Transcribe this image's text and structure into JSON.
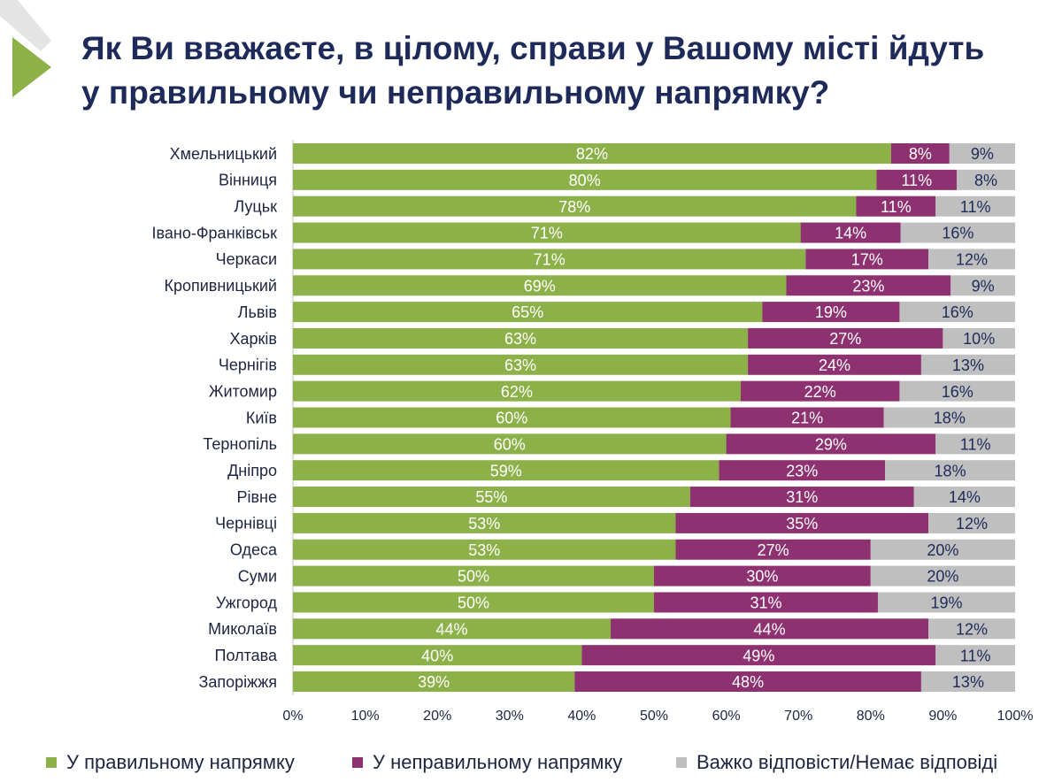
{
  "colors": {
    "title": "#1E2B5A",
    "text": "#1E2440",
    "axis": "#BFBFBF",
    "decoration_green": "#8DB149",
    "decoration_gray": "#E4E4E4"
  },
  "chart_data": {
    "type": "bar",
    "orientation": "horizontal",
    "stacking": "100%",
    "title": "Як Ви вважаєте, в цілому, справи у Вашому місті йдуть\nу правильному чи неправильному напрямку?",
    "categories": [
      "Хмельницький",
      "Вінниця",
      "Луцьк",
      "Івано-Франківськ",
      "Черкаси",
      "Кропивницький",
      "Львів",
      "Харків",
      "Чернігів",
      "Житомир",
      "Київ",
      "Тернопіль",
      "Дніпро",
      "Рівне",
      "Чернівці",
      "Одеса",
      "Суми",
      "Ужгород",
      "Миколаїв",
      "Полтава",
      "Запоріжжя"
    ],
    "series": [
      {
        "name": "У правильному напрямку",
        "color": "#8DB149",
        "label_color": "#FFFFFF",
        "values": [
          82,
          80,
          78,
          71,
          71,
          69,
          65,
          63,
          63,
          62,
          60,
          60,
          59,
          55,
          53,
          53,
          50,
          50,
          44,
          40,
          39
        ]
      },
      {
        "name": "У неправильному напрямку",
        "color": "#8E3170",
        "label_color": "#FFFFFF",
        "values": [
          8,
          11,
          11,
          14,
          17,
          23,
          19,
          27,
          24,
          22,
          21,
          29,
          23,
          31,
          35,
          27,
          30,
          31,
          44,
          49,
          48
        ]
      },
      {
        "name": "Важко відповісти/Немає відповіді",
        "color": "#BFBFBF",
        "label_color": "#1E2B5A",
        "values": [
          9,
          8,
          11,
          16,
          12,
          9,
          16,
          10,
          13,
          16,
          18,
          11,
          18,
          14,
          12,
          20,
          20,
          19,
          12,
          11,
          13
        ]
      }
    ],
    "unit": "%",
    "xlim": [
      0,
      100
    ],
    "xticks": [
      0,
      10,
      20,
      30,
      40,
      50,
      60,
      70,
      80,
      90,
      100
    ],
    "legend": "bottom",
    "grid": false
  }
}
